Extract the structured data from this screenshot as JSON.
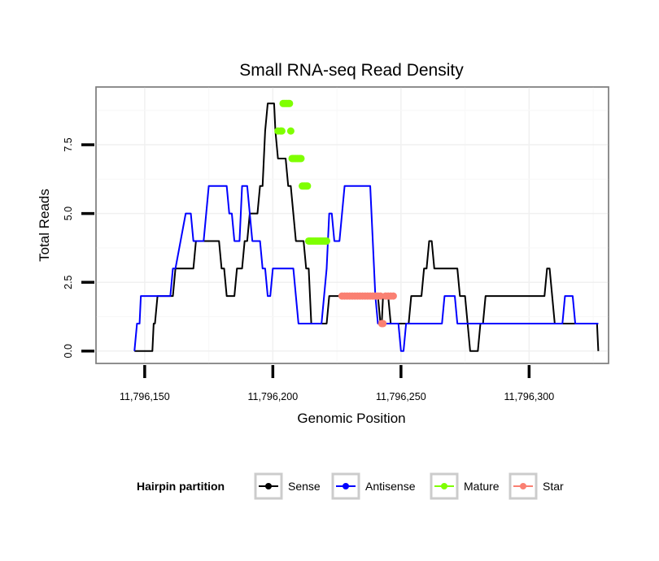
{
  "chart_data": {
    "type": "line",
    "title": "Small RNA-seq Read Density",
    "xlabel": "Genomic Position",
    "ylabel": "Total Reads",
    "xlim": [
      11796131,
      11796331
    ],
    "ylim": [
      -0.45,
      9.6
    ],
    "x_ticks": [
      {
        "value": 11796150,
        "label": "11,796,150"
      },
      {
        "value": 11796200,
        "label": "11,796,200"
      },
      {
        "value": 11796250,
        "label": "11,796,250"
      },
      {
        "value": 11796300,
        "label": "11,796,300"
      }
    ],
    "y_ticks": [
      {
        "value": 0,
        "label": "0.0"
      },
      {
        "value": 2.5,
        "label": "2.5"
      },
      {
        "value": 5,
        "label": "5.0"
      },
      {
        "value": 7.5,
        "label": "7.5"
      }
    ],
    "grid": true,
    "legend": {
      "title": "Hairpin partition",
      "position": "bottom",
      "entries": [
        {
          "name": "Sense",
          "color": "#000000"
        },
        {
          "name": "Antisense",
          "color": "#0000ff"
        },
        {
          "name": "Mature",
          "color": "#7fff00"
        },
        {
          "name": "Star",
          "color": "#fa8072"
        }
      ]
    },
    "series": [
      {
        "name": "Sense",
        "color": "#000000",
        "mode": "line",
        "x": [
          11796146,
          11796153,
          11796153.5,
          11796154,
          11796155,
          11796161,
          11796162,
          11796163,
          11796169,
          11796170,
          11796171,
          11796172,
          11796179,
          11796180,
          11796181,
          11796182,
          11796183,
          11796185,
          11796186,
          11796188,
          11796189,
          11796190,
          11796191,
          11796194,
          11796195,
          11796196,
          11796197,
          11796198,
          11796199,
          11796200,
          11796200.5,
          11796201,
          11796202,
          11796203,
          11796204,
          11796205,
          11796206,
          11796207,
          11796208,
          11796209,
          11796210,
          11796212,
          11796213,
          11796214,
          11796214.5,
          11796215,
          11796221,
          11796222,
          11796223,
          11796224,
          11796225,
          11796226,
          11796240,
          11796241,
          11796242,
          11796242.5,
          11796243,
          11796245,
          11796246,
          11796247,
          11796253,
          11796254,
          11796255,
          11796256,
          11796257,
          11796258,
          11796259,
          11796260,
          11796261,
          11796262,
          11796263,
          11796264,
          11796269,
          11796270,
          11796271,
          11796272,
          11796273,
          11796274,
          11796275,
          11796276,
          11796277,
          11796278,
          11796280,
          11796281,
          11796282,
          11796283,
          11796284,
          11796285,
          11796286,
          11796287,
          11796306,
          11796307,
          11796308,
          11796309,
          11796310,
          11796312,
          11796313,
          11796326.5,
          11796327
        ],
        "y": [
          0,
          0,
          1,
          1,
          2,
          2,
          3,
          3,
          3,
          4,
          4,
          4,
          4,
          3,
          3,
          2,
          2,
          2,
          3,
          3,
          4,
          4,
          5,
          5,
          6,
          6,
          8,
          9,
          9,
          9,
          9,
          8,
          7,
          7,
          7,
          7,
          6,
          6,
          5,
          4,
          4,
          4,
          3,
          3,
          2,
          1,
          1,
          2,
          2,
          2,
          2,
          2,
          2,
          2,
          1,
          1,
          2,
          2,
          1,
          1,
          1,
          2,
          2,
          2,
          2,
          2,
          3,
          3,
          4,
          4,
          3,
          3,
          3,
          3,
          3,
          3,
          2,
          2,
          2,
          1,
          0,
          0,
          0,
          1,
          1,
          2,
          2,
          2,
          2,
          2,
          2,
          3,
          3,
          2,
          1,
          1,
          1,
          1,
          0
        ]
      },
      {
        "name": "Antisense",
        "color": "#0000ff",
        "mode": "line",
        "x": [
          11796146,
          11796147,
          11796148,
          11796148.5,
          11796149,
          11796153,
          11796154,
          11796155,
          11796156,
          11796157,
          11796158,
          11796160,
          11796161,
          11796162,
          11796164,
          11796166,
          11796167,
          11796168,
          11796169,
          11796170,
          11796171,
          11796173,
          11796174,
          11796175,
          11796176,
          11796177,
          11796178,
          11796179,
          11796180,
          11796182,
          11796183,
          11796184,
          11796185,
          11796187,
          11796188,
          11796190,
          11796191,
          11796192,
          11796193,
          11796195,
          11796196,
          11796197,
          11796198,
          11796199,
          11796200,
          11796201,
          11796202,
          11796203,
          11796204,
          11796205,
          11796206,
          11796207,
          11796208,
          11796209,
          11796210,
          11796211,
          11796212,
          11796214,
          11796215,
          11796216,
          11796217,
          11796219,
          11796220,
          11796221,
          11796222,
          11796223,
          11796224,
          11796226,
          11796227,
          11796228,
          11796229,
          11796230,
          11796231,
          11796233,
          11796234,
          11796235,
          11796236,
          11796237,
          11796238,
          11796239,
          11796240,
          11796241,
          11796242,
          11796243,
          11796244,
          11796245,
          11796246,
          11796247,
          11796248,
          11796249,
          11796250,
          11796251,
          11796252,
          11796253,
          11796254,
          11796257,
          11796258,
          11796259,
          11796260,
          11796261,
          11796262,
          11796263,
          11796264,
          11796265,
          11796266,
          11796267,
          11796268,
          11796269,
          11796270,
          11796271,
          11796272,
          11796273,
          11796274,
          11796276,
          11796278,
          11796280,
          11796281,
          11796282,
          11796283,
          11796284,
          11796285,
          11796286,
          11796287,
          11796288,
          11796290,
          11796292,
          11796293,
          11796294,
          11796295,
          11796296,
          11796297,
          11796299,
          11796300,
          11796301,
          11796302,
          11796305,
          11796306,
          11796307,
          11796308,
          11796309,
          11796310,
          11796311,
          11796312,
          11796313,
          11796314,
          11796315,
          11796316,
          11796317,
          11796318,
          11796319,
          11796320,
          11796321,
          11796322,
          11796323,
          11796324,
          11796325,
          11796326,
          11796327
        ],
        "y": [
          0,
          1,
          1,
          2,
          2,
          2,
          2,
          2,
          2,
          2,
          2,
          2,
          3,
          3,
          4,
          5,
          5,
          5,
          4,
          4,
          4,
          4,
          5,
          6,
          6,
          6,
          6,
          6,
          6,
          6,
          5,
          5,
          4,
          4,
          6,
          6,
          5,
          4,
          4,
          4,
          3,
          3,
          2,
          2,
          3,
          3,
          3,
          3,
          3,
          3,
          3,
          3,
          3,
          2,
          1,
          1,
          1,
          1,
          1,
          1,
          1,
          1,
          2,
          3,
          5,
          5,
          4,
          4,
          5,
          6,
          6,
          6,
          6,
          6,
          6,
          6,
          6,
          6,
          6,
          4,
          2,
          1,
          1,
          1,
          1,
          1,
          1,
          1,
          1,
          1,
          0,
          0,
          1,
          1,
          1,
          1,
          1,
          1,
          1,
          1,
          1,
          1,
          1,
          1,
          1,
          2,
          2,
          2,
          2,
          2,
          1,
          1,
          1,
          1,
          1,
          1,
          1,
          1,
          1,
          1,
          1,
          1,
          1,
          1,
          1,
          1,
          1,
          1,
          1,
          1,
          1,
          1,
          1,
          1,
          1,
          1,
          1,
          1,
          1,
          1,
          1,
          1,
          1,
          1,
          2,
          2,
          2,
          2,
          1,
          1,
          1,
          1,
          1,
          1,
          1,
          1,
          1,
          1
        ]
      },
      {
        "name": "Mature",
        "color": "#7fff00",
        "mode": "points",
        "x": [
          11796202,
          11796203,
          11796203.5,
          11796204,
          11796204.5,
          11796205,
          11796205.5,
          11796206,
          11796206.5,
          11796207,
          11796207.5,
          11796208,
          11796208.5,
          11796209,
          11796209.5,
          11796210,
          11796210.5,
          11796211,
          11796211.5,
          11796212,
          11796212.5,
          11796213,
          11796213.5,
          11796214,
          11796214.5,
          11796215,
          11796215.5,
          11796216,
          11796216.5,
          11796217,
          11796217.5,
          11796218,
          11796218.5,
          11796219,
          11796219.5,
          11796220,
          11796220.5,
          11796221
        ],
        "y": [
          8,
          8,
          8,
          9,
          9,
          9,
          9,
          9,
          9,
          8,
          7,
          7,
          7,
          7,
          7,
          7,
          7,
          7,
          6,
          6,
          6,
          6,
          6,
          4,
          4,
          4,
          4,
          4,
          4,
          4,
          4,
          4,
          4,
          4,
          4,
          4,
          4,
          4
        ]
      },
      {
        "name": "Star",
        "color": "#fa8072",
        "mode": "points",
        "x": [
          11796227,
          11796228,
          11796229,
          11796230,
          11796231,
          11796232,
          11796233,
          11796234,
          11796235,
          11796236,
          11796237,
          11796238,
          11796239,
          11796240,
          11796241,
          11796242,
          11796242.5,
          11796243,
          11796244,
          11796245,
          11796246,
          11796247
        ],
        "y": [
          2,
          2,
          2,
          2,
          2,
          2,
          2,
          2,
          2,
          2,
          2,
          2,
          2,
          2,
          2,
          2,
          1,
          1,
          2,
          2,
          2,
          2
        ]
      }
    ]
  }
}
